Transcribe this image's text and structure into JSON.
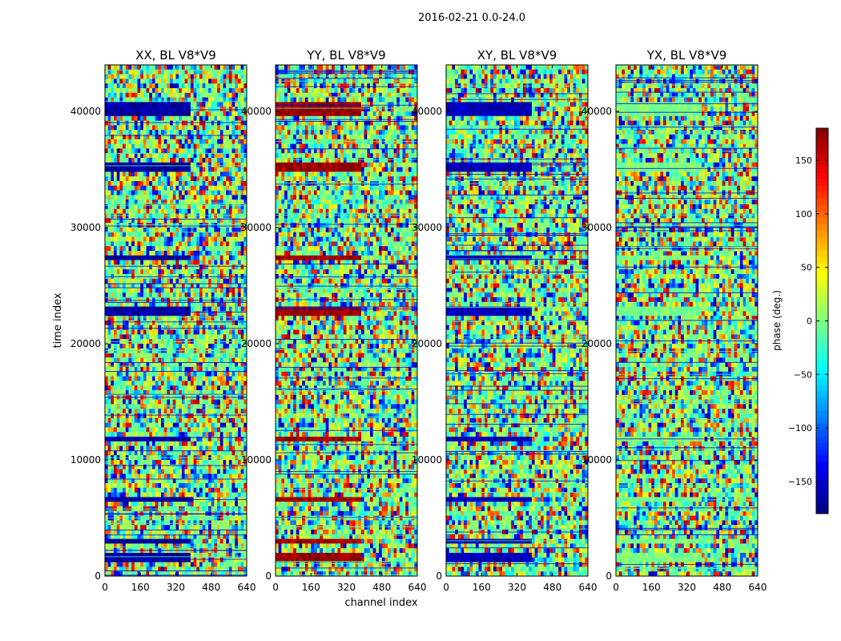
{
  "chart_data": {
    "type": "heatmap",
    "suptitle": "2016-02-21 0.0-24.0",
    "xlabel": "channel index",
    "ylabel": "time index",
    "xlim": [
      0,
      640
    ],
    "ylim": [
      0,
      44000
    ],
    "xticks": [
      0,
      160,
      320,
      480,
      640
    ],
    "yticks": [
      0,
      10000,
      20000,
      30000,
      40000
    ],
    "colormap": "jet",
    "colorbar": {
      "label": "phase (deg.)",
      "range": [
        -180,
        180
      ],
      "ticks": [
        -150,
        -100,
        -50,
        0,
        50,
        100,
        150
      ],
      "tick_labels": [
        "−150",
        "−100",
        "−50",
        "0",
        "50",
        "100",
        "150"
      ]
    },
    "panels": [
      {
        "title": "XX, BL V8*V9",
        "pol": "XX",
        "band_bias_deg": -170
      },
      {
        "title": "YY, BL V8*V9",
        "pol": "YY",
        "band_bias_deg": 170
      },
      {
        "title": "XY, BL V8*V9",
        "pol": "XY",
        "band_bias_deg": -160
      },
      {
        "title": "YX, BL V8*V9",
        "pol": "YX",
        "band_bias_deg": 0
      }
    ],
    "highlighted_time_bands": [
      [
        1200,
        1900
      ],
      [
        2700,
        3100
      ],
      [
        6400,
        6900
      ],
      [
        11400,
        12100
      ],
      [
        22500,
        23300
      ],
      [
        27300,
        27700
      ],
      [
        35000,
        35400
      ],
      [
        39800,
        40600
      ]
    ],
    "flag_channel_range": [
      390,
      640
    ]
  }
}
